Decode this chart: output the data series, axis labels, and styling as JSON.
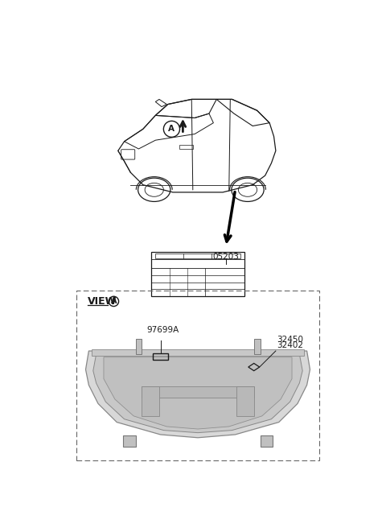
{
  "bg_color": "#ffffff",
  "line_color": "#1a1a1a",
  "gray_fill": "#d4d4d4",
  "gray_mid": "#bbbbbb",
  "gray_dark": "#999999",
  "gray_light": "#e8e8e8",
  "part_05203": "05203",
  "part_97699A": "97699A",
  "part_32450": "32450",
  "part_32402": "32402",
  "view_label": "VIEW",
  "circle_label": "A",
  "font_size_label": 7.5,
  "font_size_view": 9
}
